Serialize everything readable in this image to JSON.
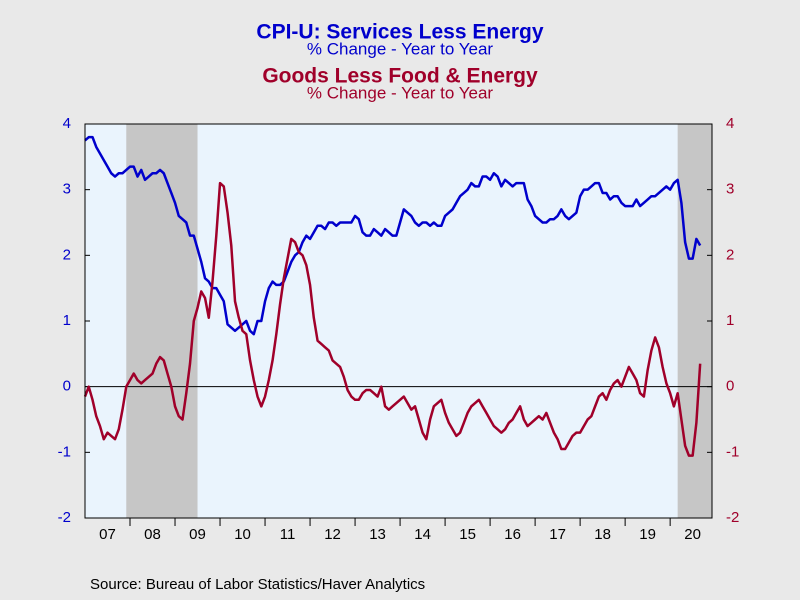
{
  "chart_data": {
    "type": "line",
    "title": "CPI-U: Services Less Energy",
    "subtitle": "% Change - Year to Year",
    "title2": "Goods Less Food & Energy",
    "subtitle2": "% Change - Year to Year",
    "source": "Source:  Bureau of Labor Statistics/Haver Analytics",
    "x": [
      2007,
      2007.083,
      2007.167,
      2007.25,
      2007.333,
      2007.417,
      2007.5,
      2007.583,
      2007.667,
      2007.75,
      2007.833,
      2007.917,
      2008,
      2008.083,
      2008.167,
      2008.25,
      2008.333,
      2008.417,
      2008.5,
      2008.583,
      2008.667,
      2008.75,
      2008.833,
      2008.917,
      2009,
      2009.083,
      2009.167,
      2009.25,
      2009.333,
      2009.417,
      2009.5,
      2009.583,
      2009.667,
      2009.75,
      2009.833,
      2009.917,
      2010,
      2010.083,
      2010.167,
      2010.25,
      2010.333,
      2010.417,
      2010.5,
      2010.583,
      2010.667,
      2010.75,
      2010.833,
      2010.917,
      2011,
      2011.083,
      2011.167,
      2011.25,
      2011.333,
      2011.417,
      2011.5,
      2011.583,
      2011.667,
      2011.75,
      2011.833,
      2011.917,
      2012,
      2012.083,
      2012.167,
      2012.25,
      2012.333,
      2012.417,
      2012.5,
      2012.583,
      2012.667,
      2012.75,
      2012.833,
      2012.917,
      2013,
      2013.083,
      2013.167,
      2013.25,
      2013.333,
      2013.417,
      2013.5,
      2013.583,
      2013.667,
      2013.75,
      2013.833,
      2013.917,
      2014,
      2014.083,
      2014.167,
      2014.25,
      2014.333,
      2014.417,
      2014.5,
      2014.583,
      2014.667,
      2014.75,
      2014.833,
      2014.917,
      2015,
      2015.083,
      2015.167,
      2015.25,
      2015.333,
      2015.417,
      2015.5,
      2015.583,
      2015.667,
      2015.75,
      2015.833,
      2015.917,
      2016,
      2016.083,
      2016.167,
      2016.25,
      2016.333,
      2016.417,
      2016.5,
      2016.583,
      2016.667,
      2016.75,
      2016.833,
      2016.917,
      2017,
      2017.083,
      2017.167,
      2017.25,
      2017.333,
      2017.417,
      2017.5,
      2017.583,
      2017.667,
      2017.75,
      2017.833,
      2017.917,
      2018,
      2018.083,
      2018.167,
      2018.25,
      2018.333,
      2018.417,
      2018.5,
      2018.583,
      2018.667,
      2018.75,
      2018.833,
      2018.917,
      2019,
      2019.083,
      2019.167,
      2019.25,
      2019.333,
      2019.417,
      2019.5,
      2019.583,
      2019.667,
      2019.75,
      2019.833,
      2019.917,
      2020,
      2020.083,
      2020.167,
      2020.25,
      2020.333,
      2020.417,
      2020.5,
      2020.583,
      2020.667
    ],
    "series": [
      {
        "name": "CPI-U: Services Less Energy",
        "color": "#0000cc",
        "axis": "y",
        "values": [
          3.75,
          3.8,
          3.8,
          3.65,
          3.55,
          3.45,
          3.35,
          3.25,
          3.2,
          3.25,
          3.25,
          3.3,
          3.35,
          3.35,
          3.2,
          3.3,
          3.15,
          3.2,
          3.25,
          3.25,
          3.3,
          3.25,
          3.1,
          2.95,
          2.8,
          2.6,
          2.55,
          2.5,
          2.3,
          2.3,
          2.1,
          1.9,
          1.65,
          1.6,
          1.5,
          1.5,
          1.4,
          1.3,
          0.95,
          0.9,
          0.85,
          0.9,
          0.95,
          1.0,
          0.85,
          0.8,
          1.0,
          1.0,
          1.3,
          1.5,
          1.6,
          1.55,
          1.55,
          1.6,
          1.75,
          1.9,
          2.0,
          2.05,
          2.2,
          2.3,
          2.25,
          2.35,
          2.45,
          2.45,
          2.4,
          2.5,
          2.5,
          2.45,
          2.5,
          2.5,
          2.5,
          2.5,
          2.6,
          2.55,
          2.35,
          2.3,
          2.3,
          2.4,
          2.35,
          2.3,
          2.4,
          2.35,
          2.3,
          2.3,
          2.5,
          2.7,
          2.65,
          2.6,
          2.5,
          2.45,
          2.5,
          2.5,
          2.45,
          2.5,
          2.45,
          2.45,
          2.6,
          2.65,
          2.7,
          2.8,
          2.9,
          2.95,
          3.0,
          3.1,
          3.05,
          3.05,
          3.2,
          3.2,
          3.15,
          3.25,
          3.2,
          3.05,
          3.15,
          3.1,
          3.05,
          3.1,
          3.1,
          3.1,
          2.85,
          2.75,
          2.6,
          2.55,
          2.5,
          2.5,
          2.55,
          2.55,
          2.6,
          2.7,
          2.6,
          2.55,
          2.6,
          2.65,
          2.9,
          3.0,
          3.0,
          3.05,
          3.1,
          3.1,
          2.95,
          2.95,
          2.85,
          2.9,
          2.9,
          2.8,
          2.75,
          2.75,
          2.75,
          2.85,
          2.75,
          2.8,
          2.85,
          2.9,
          2.9,
          2.95,
          3.0,
          3.05,
          3.0,
          3.1,
          3.15,
          2.8,
          2.2,
          1.95,
          1.95,
          2.25,
          2.15
        ]
      },
      {
        "name": "Goods Less Food & Energy",
        "color": "#a0002a",
        "axis": "y2",
        "values": [
          -0.15,
          0.0,
          -0.2,
          -0.45,
          -0.6,
          -0.8,
          -0.7,
          -0.75,
          -0.8,
          -0.65,
          -0.35,
          0.0,
          0.1,
          0.2,
          0.1,
          0.05,
          0.1,
          0.15,
          0.2,
          0.35,
          0.45,
          0.4,
          0.2,
          0.0,
          -0.3,
          -0.45,
          -0.5,
          -0.1,
          0.35,
          1.0,
          1.2,
          1.45,
          1.35,
          1.05,
          1.6,
          2.3,
          3.1,
          3.05,
          2.65,
          2.15,
          1.3,
          1.05,
          0.85,
          0.8,
          0.4,
          0.1,
          -0.15,
          -0.3,
          -0.15,
          0.1,
          0.4,
          0.8,
          1.25,
          1.65,
          1.95,
          2.25,
          2.2,
          2.05,
          2.0,
          1.85,
          1.55,
          1.05,
          0.7,
          0.65,
          0.6,
          0.55,
          0.4,
          0.35,
          0.3,
          0.15,
          -0.05,
          -0.15,
          -0.2,
          -0.2,
          -0.1,
          -0.05,
          -0.05,
          -0.1,
          -0.15,
          0.0,
          -0.3,
          -0.35,
          -0.3,
          -0.25,
          -0.2,
          -0.15,
          -0.25,
          -0.35,
          -0.3,
          -0.5,
          -0.7,
          -0.8,
          -0.5,
          -0.3,
          -0.25,
          -0.2,
          -0.4,
          -0.55,
          -0.65,
          -0.75,
          -0.7,
          -0.55,
          -0.4,
          -0.3,
          -0.25,
          -0.2,
          -0.3,
          -0.4,
          -0.5,
          -0.6,
          -0.65,
          -0.7,
          -0.65,
          -0.55,
          -0.5,
          -0.4,
          -0.3,
          -0.5,
          -0.6,
          -0.55,
          -0.5,
          -0.45,
          -0.5,
          -0.4,
          -0.55,
          -0.7,
          -0.8,
          -0.95,
          -0.95,
          -0.85,
          -0.75,
          -0.7,
          -0.7,
          -0.6,
          -0.5,
          -0.45,
          -0.3,
          -0.15,
          -0.1,
          -0.2,
          -0.05,
          0.05,
          0.1,
          0.0,
          0.15,
          0.3,
          0.2,
          0.1,
          -0.1,
          -0.15,
          0.25,
          0.55,
          0.75,
          0.6,
          0.3,
          0.05,
          -0.1,
          -0.3,
          -0.1,
          -0.5,
          -0.9,
          -1.05,
          -1.05,
          -0.55,
          0.35
        ]
      }
    ],
    "recessions": [
      [
        2007.917,
        2009.5
      ],
      [
        2020.167,
        2020.93
      ]
    ],
    "xlim": [
      2007,
      2020.93
    ],
    "xticks": [
      2008,
      2009,
      2010,
      2011,
      2012,
      2013,
      2014,
      2015,
      2016,
      2017,
      2018,
      2019,
      2020
    ],
    "xlabels": [
      {
        "value": 2007.5,
        "label": "07"
      },
      {
        "value": 2008.5,
        "label": "08"
      },
      {
        "value": 2009.5,
        "label": "09"
      },
      {
        "value": 2010.5,
        "label": "10"
      },
      {
        "value": 2011.5,
        "label": "11"
      },
      {
        "value": 2012.5,
        "label": "12"
      },
      {
        "value": 2013.5,
        "label": "13"
      },
      {
        "value": 2014.5,
        "label": "14"
      },
      {
        "value": 2015.5,
        "label": "15"
      },
      {
        "value": 2016.5,
        "label": "16"
      },
      {
        "value": 2017.5,
        "label": "17"
      },
      {
        "value": 2018.5,
        "label": "18"
      },
      {
        "value": 2019.5,
        "label": "19"
      },
      {
        "value": 2020.5,
        "label": "20"
      }
    ],
    "ylim": [
      -2,
      4
    ],
    "yticks": [
      -2,
      -1,
      0,
      1,
      2,
      3,
      4
    ],
    "y2lim": [
      -2,
      4
    ],
    "y2ticks": [
      -2,
      -1,
      0,
      1,
      2,
      3,
      4
    ],
    "zero_line": 0
  }
}
